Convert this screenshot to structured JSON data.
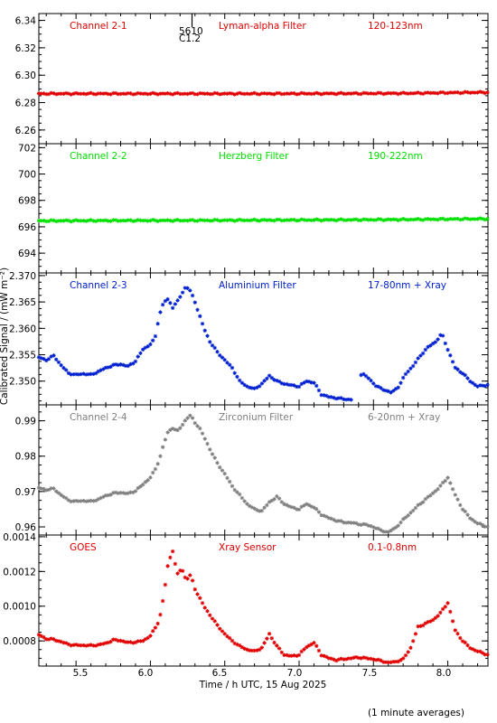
{
  "chart_data": {
    "type": "scatter",
    "xlabel": "Time / h UTC, 15 Aug 2025",
    "ylabel": "Calibrated Signal / (mW m⁻²)",
    "footnote": "(1 minute averages)",
    "xlim": [
      5.25,
      8.27
    ],
    "xticks": [
      "5.5",
      "6.0",
      "6.5",
      "7.0",
      "7.5",
      "8.0"
    ],
    "xtick_values": [
      5.5,
      6.0,
      6.5,
      7.0,
      7.5,
      8.0
    ],
    "marker": "asterisk",
    "event_marker": {
      "x": 6.28,
      "label_top": "5610",
      "label_bottom": "C1.2"
    },
    "panels": [
      {
        "channel": "Channel 2-1",
        "filter": "Lyman-alpha Filter",
        "band": "120-123nm",
        "color": "#e00000",
        "ylim": [
          6.25,
          6.345
        ],
        "yticks": [
          "6.26",
          "6.28",
          "6.30",
          "6.32",
          "6.34"
        ],
        "ytick_values": [
          6.26,
          6.28,
          6.3,
          6.32,
          6.34
        ],
        "series": {
          "x": [
            5.25,
            5.75,
            6.25,
            6.75,
            7.25,
            7.75,
            8.0,
            8.27
          ],
          "y": [
            6.2865,
            6.2865,
            6.2865,
            6.2865,
            6.2866,
            6.2868,
            6.2872,
            6.2875
          ]
        }
      },
      {
        "channel": "Channel 2-2",
        "filter": "Herzberg Filter",
        "band": "190-222nm",
        "color": "#00e000",
        "ylim": [
          692.5,
          702.3
        ],
        "yticks": [
          "694",
          "696",
          "698",
          "700",
          "702"
        ],
        "ytick_values": [
          694,
          696,
          698,
          700,
          702
        ],
        "series": {
          "x": [
            5.25,
            5.75,
            6.25,
            6.75,
            7.25,
            7.75,
            8.0,
            8.27
          ],
          "y": [
            696.45,
            696.47,
            696.48,
            696.5,
            696.52,
            696.55,
            696.58,
            696.6
          ]
        }
      },
      {
        "channel": "Channel 2-3",
        "filter": "Aluminium Filter",
        "band": "17-80nm + Xray",
        "color": "#0020d0",
        "ylim": [
          2.3455,
          2.3705
        ],
        "yticks": [
          "2.350",
          "2.355",
          "2.360",
          "2.365",
          "2.370"
        ],
        "ytick_values": [
          2.35,
          2.355,
          2.36,
          2.365,
          2.37
        ],
        "gaps": [
          [
            7.36,
            7.41
          ]
        ],
        "series": {
          "x": [
            5.25,
            5.3,
            5.35,
            5.4,
            5.45,
            5.5,
            5.55,
            5.6,
            5.65,
            5.7,
            5.75,
            5.8,
            5.85,
            5.9,
            5.95,
            6.0,
            6.03,
            6.06,
            6.09,
            6.12,
            6.15,
            6.18,
            6.21,
            6.24,
            6.27,
            6.3,
            6.33,
            6.36,
            6.4,
            6.45,
            6.5,
            6.55,
            6.6,
            6.65,
            6.7,
            6.75,
            6.8,
            6.85,
            6.9,
            6.95,
            7.0,
            7.05,
            7.1,
            7.15,
            7.2,
            7.25,
            7.3,
            7.35,
            7.42,
            7.47,
            7.52,
            7.57,
            7.62,
            7.67,
            7.72,
            7.77,
            7.82,
            7.87,
            7.92,
            7.96,
            8.0,
            8.05,
            8.1,
            8.15,
            8.2,
            8.27
          ],
          "y": [
            2.3545,
            2.354,
            2.3548,
            2.353,
            2.3515,
            2.3512,
            2.3514,
            2.3512,
            2.3518,
            2.3525,
            2.353,
            2.3532,
            2.3528,
            2.3538,
            2.356,
            2.357,
            2.358,
            2.3625,
            2.365,
            2.3655,
            2.364,
            2.365,
            2.3665,
            2.368,
            2.367,
            2.365,
            2.3625,
            2.36,
            2.3575,
            2.3555,
            2.354,
            2.3525,
            2.35,
            2.349,
            2.3485,
            2.3495,
            2.351,
            2.35,
            2.3495,
            2.3492,
            2.349,
            2.35,
            2.3497,
            2.3475,
            2.347,
            2.3468,
            2.3466,
            2.3465,
            2.3515,
            2.3505,
            2.349,
            2.3484,
            2.3478,
            2.349,
            2.3515,
            2.353,
            2.355,
            2.3565,
            2.3575,
            2.359,
            2.356,
            2.3525,
            2.3515,
            2.35,
            2.349,
            2.3493
          ]
        }
      },
      {
        "channel": "Channel 2-4",
        "filter": "Zirconium Filter",
        "band": "6-20nm + Xray",
        "color": "#808080",
        "ylim": [
          0.9577,
          0.9945
        ],
        "yticks": [
          "0.96",
          "0.97",
          "0.98",
          "0.99"
        ],
        "ytick_values": [
          0.96,
          0.97,
          0.98,
          0.99
        ],
        "series": {
          "x": [
            5.25,
            5.3,
            5.35,
            5.4,
            5.45,
            5.5,
            5.55,
            5.6,
            5.65,
            5.7,
            5.75,
            5.8,
            5.85,
            5.9,
            5.95,
            6.0,
            6.03,
            6.06,
            6.09,
            6.12,
            6.15,
            6.18,
            6.21,
            6.24,
            6.27,
            6.3,
            6.33,
            6.36,
            6.4,
            6.45,
            6.5,
            6.55,
            6.6,
            6.65,
            6.7,
            6.75,
            6.8,
            6.85,
            6.9,
            6.95,
            7.0,
            7.05,
            7.1,
            7.15,
            7.2,
            7.25,
            7.3,
            7.35,
            7.4,
            7.45,
            7.5,
            7.55,
            7.6,
            7.65,
            7.7,
            7.75,
            7.8,
            7.85,
            7.9,
            7.95,
            8.0,
            8.05,
            8.1,
            8.15,
            8.2,
            8.27
          ],
          "y": [
            0.971,
            0.9705,
            0.9708,
            0.969,
            0.9675,
            0.9672,
            0.9674,
            0.9672,
            0.9678,
            0.9688,
            0.9695,
            0.9697,
            0.9694,
            0.9702,
            0.972,
            0.974,
            0.976,
            0.979,
            0.9835,
            0.987,
            0.988,
            0.987,
            0.9885,
            0.9905,
            0.9915,
            0.9895,
            0.988,
            0.9855,
            0.982,
            0.978,
            0.975,
            0.9715,
            0.969,
            0.9665,
            0.965,
            0.9645,
            0.967,
            0.9685,
            0.9665,
            0.9655,
            0.965,
            0.9665,
            0.9655,
            0.9635,
            0.9625,
            0.9618,
            0.9613,
            0.9612,
            0.9608,
            0.9606,
            0.96,
            0.959,
            0.9585,
            0.9598,
            0.962,
            0.964,
            0.966,
            0.9678,
            0.9695,
            0.9715,
            0.974,
            0.969,
            0.965,
            0.9625,
            0.961,
            0.96
          ]
        }
      },
      {
        "channel": "GOES",
        "filter": "Xray Sensor",
        "band": "0.1-0.8nm",
        "color": "#e00000",
        "ylim": [
          0.000655,
          0.00141
        ],
        "yticks": [
          "0.0008",
          "0.0010",
          "0.0012",
          "0.0014"
        ],
        "ytick_values": [
          0.0008,
          0.001,
          0.0012,
          0.0014
        ],
        "series": {
          "x": [
            5.25,
            5.3,
            5.35,
            5.4,
            5.45,
            5.5,
            5.55,
            5.6,
            5.65,
            5.7,
            5.75,
            5.8,
            5.85,
            5.9,
            5.95,
            6.0,
            6.03,
            6.06,
            6.09,
            6.12,
            6.15,
            6.18,
            6.21,
            6.24,
            6.27,
            6.3,
            6.33,
            6.36,
            6.4,
            6.45,
            6.5,
            6.55,
            6.6,
            6.65,
            6.7,
            6.75,
            6.8,
            6.85,
            6.9,
            6.95,
            7.0,
            7.05,
            7.1,
            7.15,
            7.2,
            7.25,
            7.3,
            7.35,
            7.4,
            7.45,
            7.5,
            7.55,
            7.6,
            7.65,
            7.7,
            7.75,
            7.8,
            7.85,
            7.9,
            7.95,
            8.0,
            8.05,
            8.1,
            8.15,
            8.2,
            8.27
          ],
          "y": [
            0.000835,
            0.000812,
            0.000808,
            0.000795,
            0.00078,
            0.000775,
            0.000775,
            0.000773,
            0.000777,
            0.000786,
            0.000805,
            0.000802,
            0.00079,
            0.000793,
            0.0008,
            0.00083,
            0.00087,
            0.00092,
            0.00106,
            0.00125,
            0.00132,
            0.00118,
            0.00122,
            0.00115,
            0.00118,
            0.0011,
            0.00105,
            0.001,
            0.00095,
            0.00089,
            0.00084,
            0.0008,
            0.00077,
            0.00075,
            0.00074,
            0.00076,
            0.00084,
            0.00077,
            0.00072,
            0.000712,
            0.00072,
            0.000765,
            0.00079,
            0.00072,
            0.0007,
            0.00069,
            0.000695,
            0.0007,
            0.000705,
            0.0007,
            0.000695,
            0.000685,
            0.000675,
            0.00068,
            0.000695,
            0.00076,
            0.00088,
            0.0009,
            0.00092,
            0.00096,
            0.00102,
            0.00086,
            0.0008,
            0.00076,
            0.00074,
            0.00072
          ]
        }
      }
    ]
  }
}
